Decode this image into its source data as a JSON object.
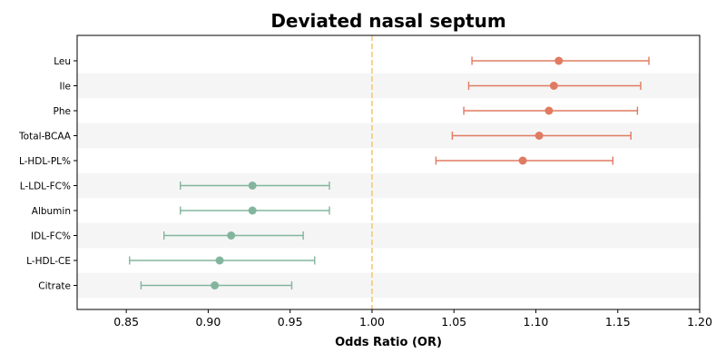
{
  "chart_data": {
    "type": "forest",
    "title": "Deviated nasal septum",
    "xlabel": "Odds Ratio (OR)",
    "xlim": [
      0.82,
      1.2
    ],
    "xticks": [
      "0.85",
      "0.90",
      "0.95",
      "1.00",
      "1.05",
      "1.10",
      "1.15",
      "1.20"
    ],
    "reference_line": 1.0,
    "row_banding": true,
    "colors": {
      "risk": "#e07b62",
      "protective": "#83b59e",
      "reference": "#f5c56e",
      "band": "#f5f5f5"
    },
    "points": [
      {
        "label": "Leu",
        "or": 1.114,
        "lower": 1.061,
        "upper": 1.169,
        "group": "risk"
      },
      {
        "label": "Ile",
        "or": 1.111,
        "lower": 1.059,
        "upper": 1.164,
        "group": "risk"
      },
      {
        "label": "Phe",
        "or": 1.108,
        "lower": 1.056,
        "upper": 1.162,
        "group": "risk"
      },
      {
        "label": "Total-BCAA",
        "or": 1.102,
        "lower": 1.049,
        "upper": 1.158,
        "group": "risk"
      },
      {
        "label": "L-HDL-PL%",
        "or": 1.092,
        "lower": 1.039,
        "upper": 1.147,
        "group": "risk"
      },
      {
        "label": "L-LDL-FC%",
        "or": 0.927,
        "lower": 0.883,
        "upper": 0.974,
        "group": "protective"
      },
      {
        "label": "Albumin",
        "or": 0.927,
        "lower": 0.883,
        "upper": 0.974,
        "group": "protective"
      },
      {
        "label": "IDL-FC%",
        "or": 0.914,
        "lower": 0.873,
        "upper": 0.958,
        "group": "protective"
      },
      {
        "label": "L-HDL-CE",
        "or": 0.907,
        "lower": 0.852,
        "upper": 0.965,
        "group": "protective"
      },
      {
        "label": "Citrate",
        "or": 0.904,
        "lower": 0.859,
        "upper": 0.951,
        "group": "protective"
      }
    ]
  }
}
